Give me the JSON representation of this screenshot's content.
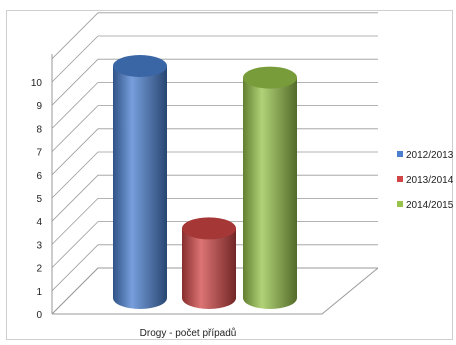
{
  "chart_data": {
    "type": "bar",
    "categories": [
      "Drogy - počet případů"
    ],
    "series": [
      {
        "name": "2012/2013",
        "values": [
          10
        ],
        "color": "#4a7fd0"
      },
      {
        "name": "2013/2014",
        "values": [
          3
        ],
        "color": "#d04545"
      },
      {
        "name": "2014/2015",
        "values": [
          9.5
        ],
        "color": "#97c34a"
      }
    ],
    "xlabel": "",
    "ylabel": "",
    "ylim": [
      0,
      10
    ],
    "yticks": [
      0,
      1,
      2,
      3,
      4,
      5,
      6,
      7,
      8,
      9,
      10
    ],
    "grid": true,
    "legend": "right",
    "style": "3d-cylinder"
  }
}
